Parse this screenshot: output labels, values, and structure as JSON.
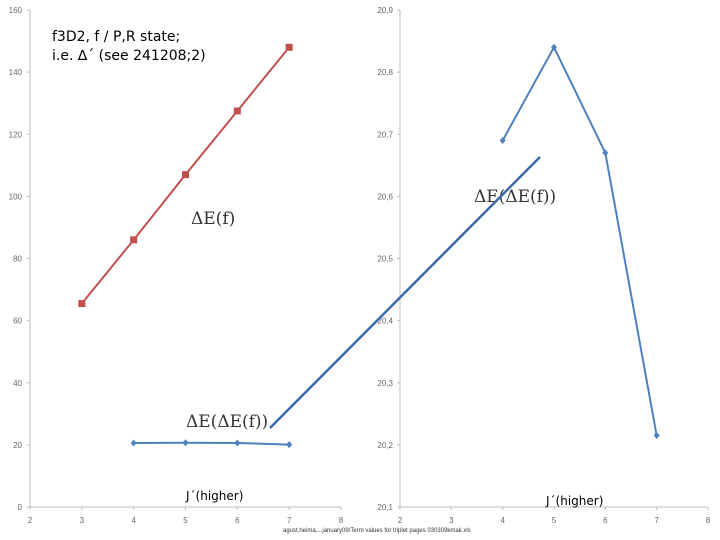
{
  "note": {
    "line1": "f3D2, f / P,R state;",
    "line2": "i.e. ∆´ (see 241208;2)"
  },
  "footer": "agust,heima,...january09/Term values for triplet pages 030309kmak.xls",
  "colors": {
    "red": "#c0504d",
    "blue": "#4f81bd",
    "connector": "#3c6aa8",
    "axis": "#bfbfbf"
  },
  "chart_data": [
    {
      "type": "line",
      "title": "",
      "xlabel": "J´(higher)",
      "ylabel": "",
      "xlim": [
        2,
        8
      ],
      "ylim": [
        0,
        160
      ],
      "x_ticks": [
        "2",
        "3",
        "4",
        "5",
        "6",
        "7",
        "8"
      ],
      "y_ticks": [
        "0",
        "20",
        "40",
        "60",
        "80",
        "100",
        "120",
        "140",
        "160"
      ],
      "grid": false,
      "series": [
        {
          "name": "ΔE(f)",
          "color": "#c0504d",
          "marker": "square",
          "points": [
            [
              3,
              65.5
            ],
            [
              4,
              86
            ],
            [
              5,
              107
            ],
            [
              6,
              127.5
            ],
            [
              7,
              148
            ]
          ]
        },
        {
          "name": "ΔE(ΔE(f))",
          "color": "#4f81bd",
          "marker": "diamond",
          "points": [
            [
              4,
              20.6
            ],
            [
              5,
              20.7
            ],
            [
              6,
              20.6
            ],
            [
              7,
              20.1
            ]
          ]
        }
      ]
    },
    {
      "type": "line",
      "title": "",
      "xlabel": "J´(higher)",
      "ylabel": "",
      "xlim": [
        2,
        8
      ],
      "ylim": [
        20.1,
        20.9
      ],
      "x_ticks": [
        "2",
        "3",
        "4",
        "5",
        "6",
        "7",
        "8"
      ],
      "y_ticks": [
        "20,1",
        "20,2",
        "20,3",
        "20,4",
        "20,5",
        "20,6",
        "20,7",
        "20,8",
        "20,9"
      ],
      "grid": false,
      "series": [
        {
          "name": "ΔE(ΔE(f))",
          "color": "#4f81bd",
          "marker": "diamond",
          "points": [
            [
              4,
              20.69
            ],
            [
              5,
              20.84
            ],
            [
              6,
              20.67
            ],
            [
              7,
              20.215
            ]
          ]
        }
      ]
    }
  ],
  "annotations": [
    {
      "text": "ΔE(f)"
    },
    {
      "text": "ΔE(ΔE(f))"
    },
    {
      "text": "ΔE(ΔE(f))"
    }
  ]
}
